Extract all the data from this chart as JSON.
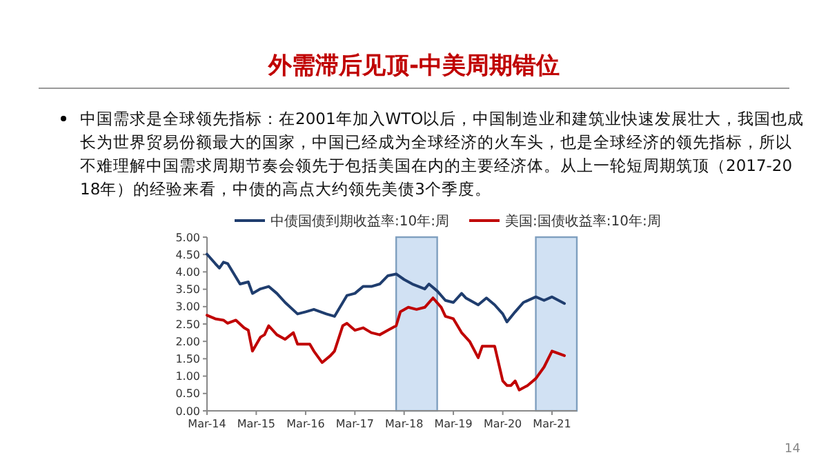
{
  "chart_data": {
    "type": "line",
    "title": "外需滞后见顶-中美周期错位",
    "subtitle": "中国需求是全球领先指标：在2001年加入WTO以后，中国制造业和建筑业快速发展壮大，我国也成长为世界贸易份额最大的国家，中国已经成为全球经济的火车头，也是全球经济的领先指标，所以不难理解中国需求周期节奏会领先于包括美国在内的主要经济体。从上一轮短周期筑顶（2017-2018年）的经验来看，中债的高点大约领先美债3个季度。",
    "annotations": [
      "14"
    ],
    "legend": "top",
    "grid": false,
    "marker": "none",
    "line_style": "solid",
    "xlim": [
      "2014-03",
      "2021-09"
    ],
    "xticks": [
      {
        "value": "2014-03",
        "label": "Mar-14"
      },
      {
        "value": "2015-03",
        "label": "Mar-15"
      },
      {
        "value": "2016-03",
        "label": "Mar-16"
      },
      {
        "value": "2017-03",
        "label": "Mar-17"
      },
      {
        "value": "2018-03",
        "label": "Mar-18"
      },
      {
        "value": "2019-03",
        "label": "Mar-19"
      },
      {
        "value": "2020-03",
        "label": "Mar-20"
      },
      {
        "value": "2021-03",
        "label": "Mar-21"
      }
    ],
    "ylim": [
      0,
      5
    ],
    "yticks": [
      {
        "value": 0,
        "label": "0.00"
      },
      {
        "value": 0.5,
        "label": "0.50"
      },
      {
        "value": 1,
        "label": "1.00"
      },
      {
        "value": 1.5,
        "label": "1.50"
      },
      {
        "value": 2,
        "label": "2.00"
      },
      {
        "value": 2.5,
        "label": "2.50"
      },
      {
        "value": 3,
        "label": "3.00"
      },
      {
        "value": 3.5,
        "label": "3.50"
      },
      {
        "value": 4,
        "label": "4.00"
      },
      {
        "value": 4.5,
        "label": "4.50"
      },
      {
        "value": 5,
        "label": "5.00"
      }
    ],
    "bands": [
      {
        "axis": "x",
        "from": "2018-01",
        "to": "2018-11",
        "color": "#c6d9f0"
      },
      {
        "axis": "x",
        "from": "2020-11",
        "to": "2021-09",
        "color": "#c6d9f0"
      }
    ],
    "series": [
      {
        "name": "中债国债到期收益率:10年:周",
        "color": "#1f3d6e",
        "x": [
          "2014-03",
          "2014-05",
          "2014-06",
          "2014-07",
          "2014-08",
          "2014-10",
          "2014-11",
          "2015-01",
          "2015-02",
          "2015-04",
          "2015-06",
          "2015-08",
          "2015-10",
          "2016-01",
          "2016-03",
          "2016-05",
          "2016-08",
          "2016-10",
          "2016-11",
          "2017-01",
          "2017-03",
          "2017-05",
          "2017-07",
          "2017-09",
          "2017-11",
          "2018-01",
          "2018-03",
          "2018-05",
          "2018-08",
          "2018-09",
          "2018-11",
          "2019-01",
          "2019-03",
          "2019-05",
          "2019-06",
          "2019-09",
          "2019-11",
          "2020-01",
          "2020-03",
          "2020-04",
          "2020-06",
          "2020-08",
          "2020-11",
          "2021-01",
          "2021-03",
          "2021-06"
        ],
        "values": [
          4.51,
          4.24,
          4.11,
          4.28,
          4.24,
          3.85,
          3.65,
          3.71,
          3.38,
          3.51,
          3.58,
          3.38,
          3.12,
          2.79,
          2.85,
          2.92,
          2.79,
          2.72,
          2.92,
          3.32,
          3.38,
          3.58,
          3.58,
          3.65,
          3.89,
          3.94,
          3.78,
          3.65,
          3.51,
          3.65,
          3.45,
          3.18,
          3.12,
          3.38,
          3.25,
          3.05,
          3.25,
          3.05,
          2.79,
          2.56,
          2.85,
          3.12,
          3.28,
          3.18,
          3.28,
          3.09
        ]
      },
      {
        "name": "美国:国债收益率:10年:周",
        "color": "#c00000",
        "x": [
          "2014-03",
          "2014-05",
          "2014-07",
          "2014-08",
          "2014-10",
          "2014-12",
          "2015-01",
          "2015-02",
          "2015-04",
          "2015-05",
          "2015-06",
          "2015-08",
          "2015-10",
          "2015-12",
          "2016-01",
          "2016-04",
          "2016-05",
          "2016-07",
          "2016-09",
          "2016-10",
          "2016-12",
          "2017-01",
          "2017-03",
          "2017-05",
          "2017-07",
          "2017-09",
          "2017-11",
          "2018-01",
          "2018-02",
          "2018-04",
          "2018-06",
          "2018-08",
          "2018-10",
          "2018-12",
          "2019-01",
          "2019-03",
          "2019-05",
          "2019-07",
          "2019-09",
          "2019-10",
          "2019-11",
          "2020-01",
          "2020-03",
          "2020-04",
          "2020-05",
          "2020-06",
          "2020-07",
          "2020-09",
          "2020-11",
          "2021-01",
          "2021-03",
          "2021-06"
        ],
        "values": [
          2.75,
          2.65,
          2.61,
          2.52,
          2.61,
          2.39,
          2.32,
          1.72,
          2.12,
          2.19,
          2.45,
          2.19,
          2.06,
          2.25,
          1.92,
          1.92,
          1.72,
          1.39,
          1.59,
          1.72,
          2.45,
          2.52,
          2.32,
          2.39,
          2.25,
          2.19,
          2.32,
          2.45,
          2.85,
          2.98,
          2.92,
          2.98,
          3.25,
          2.98,
          2.72,
          2.65,
          2.25,
          1.99,
          1.53,
          1.86,
          1.86,
          1.86,
          0.86,
          0.73,
          0.73,
          0.86,
          0.6,
          0.73,
          0.93,
          1.26,
          1.72,
          1.59
        ]
      }
    ]
  }
}
